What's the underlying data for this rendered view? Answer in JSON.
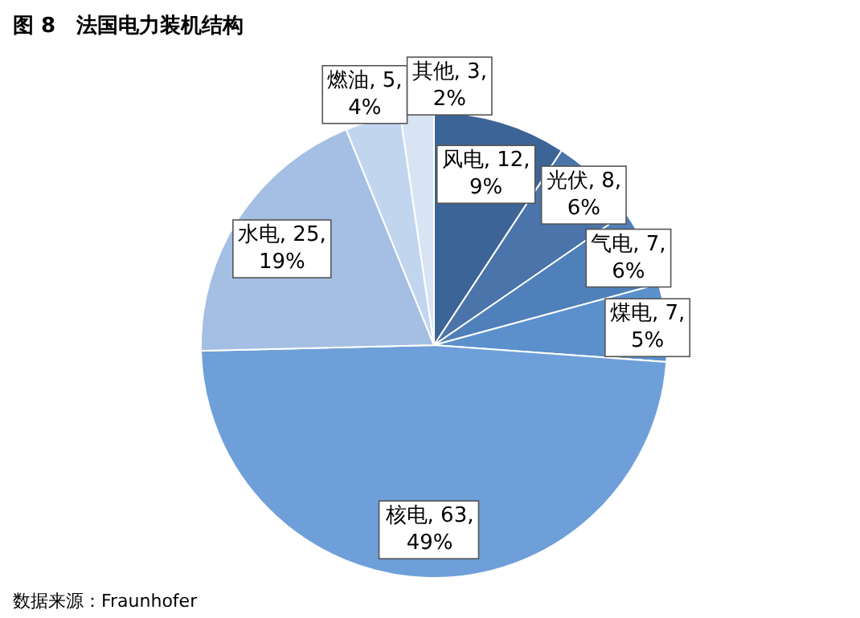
{
  "chart_data": {
    "type": "pie",
    "title": "图 8　法国电力装机结构",
    "categories": [
      "风电",
      "光伏",
      "气电",
      "煤电",
      "核电",
      "水电",
      "燃油",
      "其他"
    ],
    "values": [
      12,
      8,
      7,
      7,
      63,
      25,
      5,
      3
    ],
    "value_labels": [
      "12, 9%",
      "8, 6%",
      "7, 6%",
      "7, 5%",
      "63, 49%",
      "25, 19%",
      "5, 4%",
      "3, 2%"
    ],
    "colors": [
      "#3d6496",
      "#4a74aa",
      "#4f80ba",
      "#5b90cc",
      "#6e9fd9",
      "#a4bfe3",
      "#c2d5ee",
      "#d8e4f4"
    ],
    "legend": false,
    "annotations": [
      "数据来源：Fraunhofer"
    ]
  }
}
